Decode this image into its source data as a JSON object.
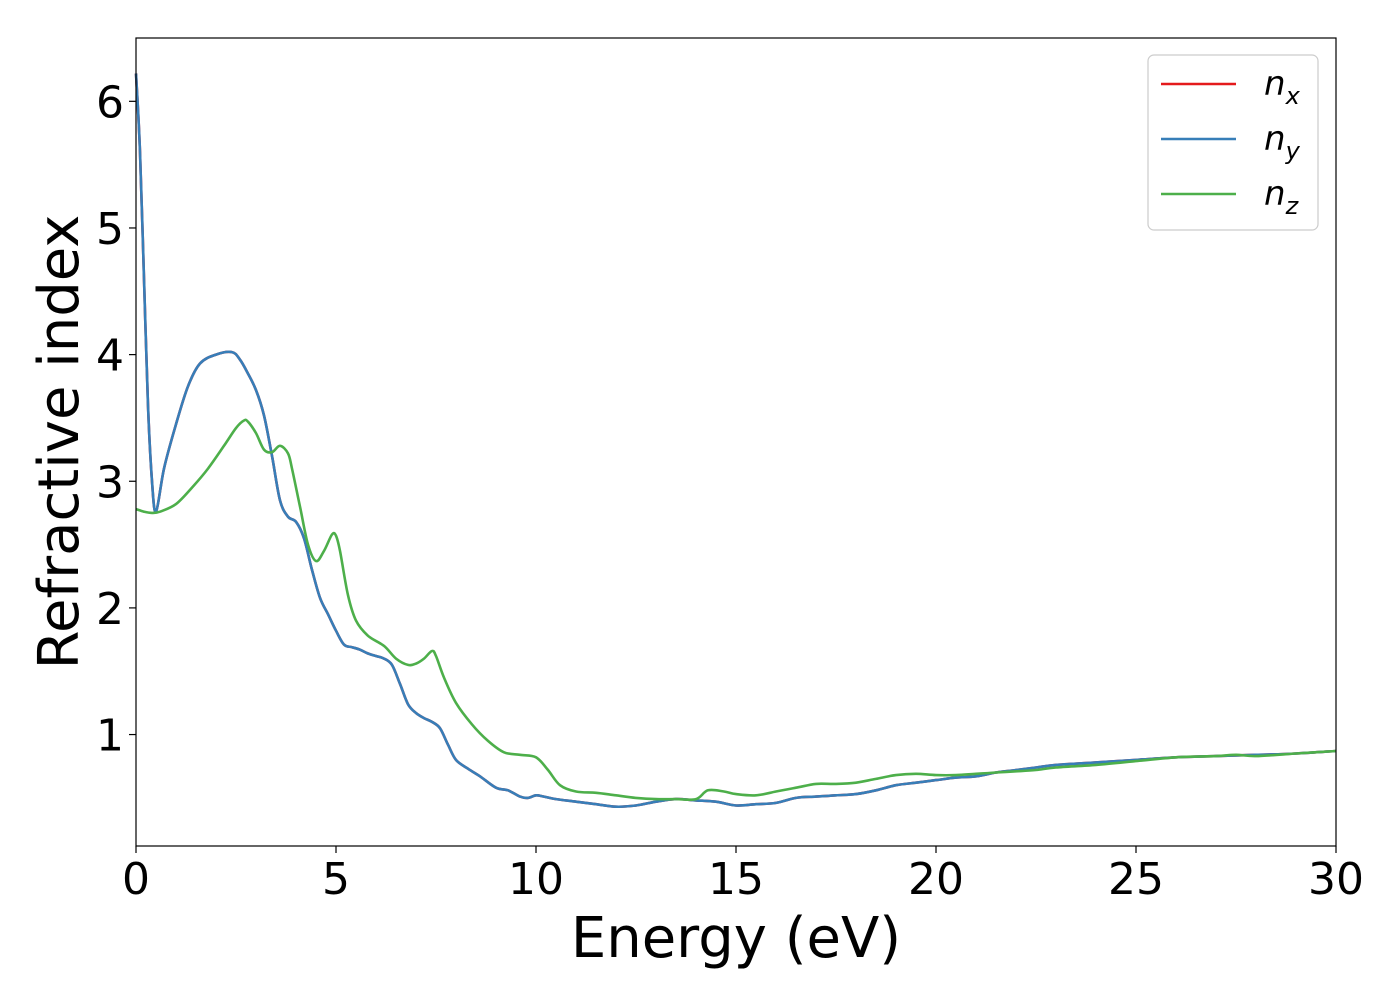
{
  "chart_data": {
    "type": "line",
    "xlabel": "Energy (eV)",
    "ylabel": "Refractive index",
    "xlim": [
      0,
      30
    ],
    "ylim": [
      0.12,
      6.5
    ],
    "xticks": [
      0,
      5,
      10,
      15,
      20,
      25,
      30
    ],
    "yticks": [
      1,
      2,
      3,
      4,
      5,
      6
    ],
    "grid": false,
    "legend_position": "top-right",
    "series": [
      {
        "name": "n_x",
        "label_base": "n",
        "label_sub": "x",
        "color": "#e41a1c",
        "x": [
          0,
          0.1,
          0.2,
          0.3,
          0.4,
          0.5,
          0.7,
          1.0,
          1.3,
          1.6,
          2.0,
          2.4,
          2.6,
          2.8,
          3.0,
          3.2,
          3.4,
          3.6,
          3.8,
          4.0,
          4.2,
          4.4,
          4.6,
          4.8,
          5.0,
          5.2,
          5.4,
          5.6,
          5.8,
          6.0,
          6.2,
          6.4,
          6.6,
          6.8,
          7.0,
          7.2,
          7.4,
          7.6,
          7.8,
          8.0,
          8.3,
          8.6,
          9.0,
          9.3,
          9.6,
          9.8,
          10.0,
          10.2,
          10.5,
          11.0,
          11.5,
          12.0,
          12.5,
          13.0,
          13.5,
          14.0,
          14.5,
          15.0,
          15.5,
          16.0,
          16.5,
          17.0,
          17.5,
          18.0,
          18.5,
          19.0,
          19.5,
          20.0,
          20.5,
          21.0,
          21.5,
          22.0,
          22.5,
          23.0,
          24.0,
          25.0,
          26.0,
          27.0,
          28.0,
          29.0,
          30.0
        ],
        "y": [
          6.22,
          5.6,
          4.6,
          3.6,
          3.0,
          2.76,
          3.1,
          3.45,
          3.75,
          3.93,
          4.0,
          4.02,
          3.96,
          3.85,
          3.72,
          3.52,
          3.2,
          2.85,
          2.72,
          2.68,
          2.55,
          2.3,
          2.08,
          1.95,
          1.82,
          1.71,
          1.69,
          1.67,
          1.64,
          1.62,
          1.6,
          1.55,
          1.4,
          1.24,
          1.17,
          1.13,
          1.1,
          1.05,
          0.92,
          0.8,
          0.73,
          0.67,
          0.58,
          0.56,
          0.51,
          0.5,
          0.52,
          0.51,
          0.49,
          0.47,
          0.45,
          0.43,
          0.44,
          0.47,
          0.49,
          0.48,
          0.47,
          0.44,
          0.45,
          0.46,
          0.5,
          0.51,
          0.52,
          0.53,
          0.56,
          0.6,
          0.62,
          0.64,
          0.66,
          0.67,
          0.7,
          0.72,
          0.74,
          0.76,
          0.78,
          0.8,
          0.82,
          0.83,
          0.84,
          0.85,
          0.87
        ]
      },
      {
        "name": "n_y",
        "label_base": "n",
        "label_sub": "y",
        "color": "#377eb8",
        "x": [
          0,
          0.1,
          0.2,
          0.3,
          0.4,
          0.5,
          0.7,
          1.0,
          1.3,
          1.6,
          2.0,
          2.4,
          2.6,
          2.8,
          3.0,
          3.2,
          3.4,
          3.6,
          3.8,
          4.0,
          4.2,
          4.4,
          4.6,
          4.8,
          5.0,
          5.2,
          5.4,
          5.6,
          5.8,
          6.0,
          6.2,
          6.4,
          6.6,
          6.8,
          7.0,
          7.2,
          7.4,
          7.6,
          7.8,
          8.0,
          8.3,
          8.6,
          9.0,
          9.3,
          9.6,
          9.8,
          10.0,
          10.2,
          10.5,
          11.0,
          11.5,
          12.0,
          12.5,
          13.0,
          13.5,
          14.0,
          14.5,
          15.0,
          15.5,
          16.0,
          16.5,
          17.0,
          17.5,
          18.0,
          18.5,
          19.0,
          19.5,
          20.0,
          20.5,
          21.0,
          21.5,
          22.0,
          22.5,
          23.0,
          24.0,
          25.0,
          26.0,
          27.0,
          28.0,
          29.0,
          30.0
        ],
        "y": [
          6.22,
          5.6,
          4.6,
          3.6,
          3.0,
          2.76,
          3.1,
          3.45,
          3.75,
          3.93,
          4.0,
          4.02,
          3.96,
          3.85,
          3.72,
          3.52,
          3.2,
          2.85,
          2.72,
          2.68,
          2.55,
          2.3,
          2.08,
          1.95,
          1.82,
          1.71,
          1.69,
          1.67,
          1.64,
          1.62,
          1.6,
          1.55,
          1.4,
          1.24,
          1.17,
          1.13,
          1.1,
          1.05,
          0.92,
          0.8,
          0.73,
          0.67,
          0.58,
          0.56,
          0.51,
          0.5,
          0.52,
          0.51,
          0.49,
          0.47,
          0.45,
          0.43,
          0.44,
          0.47,
          0.49,
          0.48,
          0.47,
          0.44,
          0.45,
          0.46,
          0.5,
          0.51,
          0.52,
          0.53,
          0.56,
          0.6,
          0.62,
          0.64,
          0.66,
          0.67,
          0.7,
          0.72,
          0.74,
          0.76,
          0.78,
          0.8,
          0.82,
          0.83,
          0.84,
          0.85,
          0.87
        ]
      },
      {
        "name": "n_z",
        "label_base": "n",
        "label_sub": "z",
        "color": "#4daf4a",
        "x": [
          0,
          0.2,
          0.4,
          0.6,
          1.0,
          1.4,
          1.8,
          2.2,
          2.5,
          2.7,
          2.8,
          3.0,
          3.2,
          3.4,
          3.6,
          3.8,
          3.9,
          4.1,
          4.3,
          4.5,
          4.7,
          4.9,
          5.0,
          5.1,
          5.3,
          5.5,
          5.8,
          6.2,
          6.5,
          6.8,
          7.0,
          7.2,
          7.4,
          7.5,
          7.7,
          8.0,
          8.4,
          8.8,
          9.2,
          9.6,
          10.0,
          10.3,
          10.6,
          11.0,
          11.5,
          12.0,
          12.5,
          13.0,
          13.5,
          14.0,
          14.3,
          14.7,
          15.0,
          15.5,
          16.0,
          16.5,
          17.0,
          17.5,
          18.0,
          18.5,
          19.0,
          19.5,
          20.0,
          20.5,
          21.0,
          21.5,
          22.0,
          22.5,
          23.0,
          24.0,
          25.0,
          26.0,
          27.0,
          27.5,
          28.0,
          29.0,
          30.0
        ],
        "y": [
          2.78,
          2.76,
          2.75,
          2.76,
          2.82,
          2.95,
          3.1,
          3.28,
          3.42,
          3.48,
          3.47,
          3.38,
          3.25,
          3.23,
          3.28,
          3.22,
          3.1,
          2.8,
          2.5,
          2.37,
          2.45,
          2.58,
          2.57,
          2.45,
          2.1,
          1.9,
          1.78,
          1.7,
          1.6,
          1.55,
          1.56,
          1.6,
          1.66,
          1.62,
          1.45,
          1.25,
          1.08,
          0.95,
          0.86,
          0.84,
          0.82,
          0.72,
          0.6,
          0.55,
          0.54,
          0.52,
          0.5,
          0.49,
          0.49,
          0.49,
          0.56,
          0.55,
          0.53,
          0.52,
          0.55,
          0.58,
          0.61,
          0.61,
          0.62,
          0.65,
          0.68,
          0.69,
          0.68,
          0.68,
          0.69,
          0.7,
          0.71,
          0.72,
          0.74,
          0.76,
          0.79,
          0.82,
          0.83,
          0.84,
          0.83,
          0.85,
          0.87
        ]
      }
    ]
  }
}
